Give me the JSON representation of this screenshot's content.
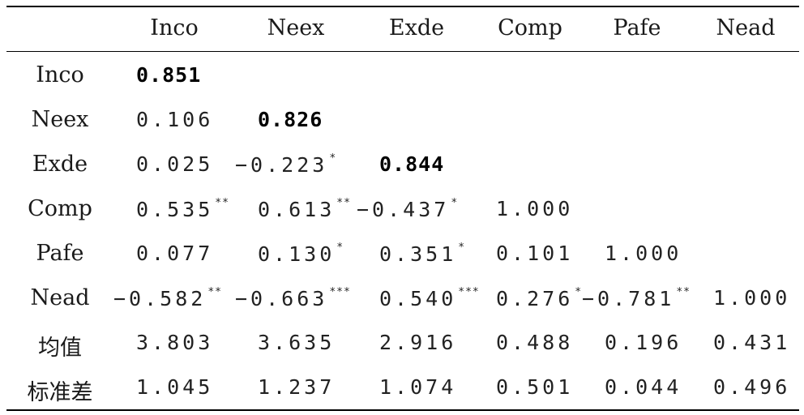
{
  "header": {
    "columns": [
      "Inco",
      "Neex",
      "Exde",
      "Comp",
      "Pafe",
      "Nead"
    ]
  },
  "rows": [
    {
      "label": "Inco",
      "cells": [
        {
          "value": "0.851",
          "sig": "",
          "bold": true
        }
      ]
    },
    {
      "label": "Neex",
      "cells": [
        {
          "value": "0.106",
          "sig": ""
        },
        {
          "value": "0.826",
          "sig": "",
          "bold": true
        }
      ]
    },
    {
      "label": "Exde",
      "cells": [
        {
          "value": "0.025",
          "sig": ""
        },
        {
          "value": "−0.223",
          "sig": "*"
        },
        {
          "value": "0.844",
          "sig": "",
          "bold": true
        }
      ]
    },
    {
      "label": "Comp",
      "cells": [
        {
          "value": "0.535",
          "sig": "**"
        },
        {
          "value": "0.613",
          "sig": "**"
        },
        {
          "value": "−0.437",
          "sig": "*"
        },
        {
          "value": "1.000",
          "sig": ""
        }
      ]
    },
    {
      "label": "Pafe",
      "cells": [
        {
          "value": "0.077",
          "sig": ""
        },
        {
          "value": "0.130",
          "sig": "*"
        },
        {
          "value": "0.351",
          "sig": "*"
        },
        {
          "value": "0.101",
          "sig": ""
        },
        {
          "value": "1.000",
          "sig": ""
        }
      ]
    },
    {
      "label": "Nead",
      "cells": [
        {
          "value": "−0.582",
          "sig": "**"
        },
        {
          "value": "−0.663",
          "sig": "***"
        },
        {
          "value": "0.540",
          "sig": "***"
        },
        {
          "value": "0.276",
          "sig": "*"
        },
        {
          "value": "−0.781",
          "sig": "**"
        },
        {
          "value": "1.000",
          "sig": ""
        }
      ]
    },
    {
      "label": "均值",
      "cells": [
        {
          "value": "3.803",
          "sig": ""
        },
        {
          "value": "3.635",
          "sig": ""
        },
        {
          "value": "2.916",
          "sig": ""
        },
        {
          "value": "0.488",
          "sig": ""
        },
        {
          "value": "0.196",
          "sig": ""
        },
        {
          "value": "0.431",
          "sig": ""
        }
      ]
    },
    {
      "label": "标准差",
      "cells": [
        {
          "value": "1.045",
          "sig": ""
        },
        {
          "value": "1.237",
          "sig": ""
        },
        {
          "value": "1.074",
          "sig": ""
        },
        {
          "value": "0.501",
          "sig": ""
        },
        {
          "value": "0.044",
          "sig": ""
        },
        {
          "value": "0.496",
          "sig": ""
        }
      ]
    }
  ]
}
